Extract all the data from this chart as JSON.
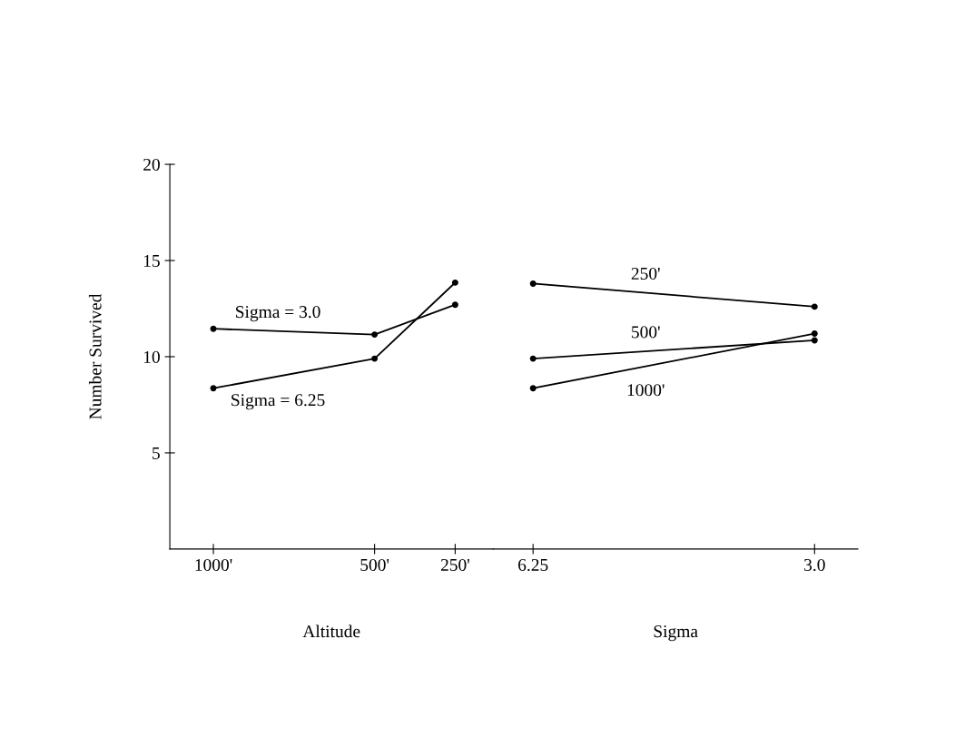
{
  "chart_data": [
    {
      "type": "line",
      "xlabel": "Altitude",
      "ylabel": "Number Survived",
      "x": [
        1000,
        500,
        250
      ],
      "series": [
        {
          "name": "Sigma = 3.0",
          "color": "#000000",
          "values": [
            11.45,
            11.15,
            12.7
          ]
        },
        {
          "name": "Sigma = 6.25",
          "color": "#000000",
          "values": [
            8.36,
            9.9,
            13.85
          ]
        }
      ],
      "xlim": [
        1135,
        132
      ],
      "xticks": [
        {
          "value": 1000,
          "label": "1000'"
        },
        {
          "value": 500,
          "label": "500'"
        },
        {
          "value": 250,
          "label": "250'"
        }
      ],
      "ylim": [
        0,
        20
      ],
      "yticks": [
        5,
        10,
        15,
        20
      ],
      "marker": "circle",
      "line_style": "solid",
      "grid": false,
      "legend": false
    },
    {
      "type": "line",
      "xlabel": "Sigma",
      "x": [
        6.25,
        3.0
      ],
      "series": [
        {
          "name": "250'",
          "color": "#000000",
          "values": [
            13.8,
            12.6
          ]
        },
        {
          "name": "500'",
          "color": "#000000",
          "values": [
            9.9,
            10.85
          ]
        },
        {
          "name": "1000'",
          "color": "#000000",
          "values": [
            8.36,
            11.2
          ]
        }
      ],
      "xlim": [
        6.71,
        2.5
      ],
      "xticks": [
        6.25,
        {
          "value": 3,
          "label": "3.0"
        }
      ],
      "ylim": [
        0,
        20
      ],
      "tick_labels": "x",
      "marker": "circle",
      "line_style": "solid",
      "grid": false,
      "legend": false
    }
  ]
}
